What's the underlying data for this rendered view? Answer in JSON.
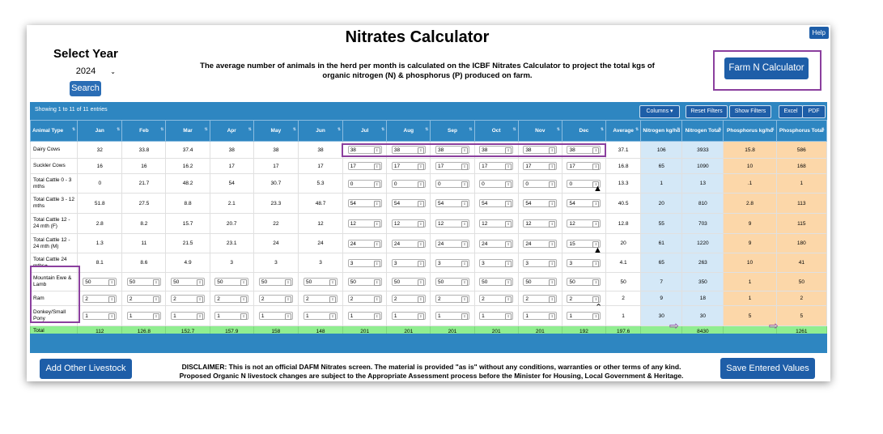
{
  "help_label": "Help",
  "title": "Nitrates Calculator",
  "select_year_label": "Select Year",
  "year_value": "2024",
  "search_label": "Search",
  "intro_text": "The average number of animals in the herd per month is calculated on the ICBF Nitrates Calculator to project the total kgs of organic nitrogen (N) & phosphorus (P) produced on farm.",
  "farm_button_label": "Farm N Calculator",
  "showing_text": "Showing 1 to 11 of 11 entries",
  "toolbar": {
    "columns": "Columns ▾",
    "reset": "Reset Filters",
    "show": "Show Filters",
    "excel": "Excel",
    "pdf": "PDF"
  },
  "headers": [
    "Animal Type",
    "Jan",
    "Feb",
    "Mar",
    "Apr",
    "May",
    "Jun",
    "Jul",
    "Aug",
    "Sep",
    "Oct",
    "Nov",
    "Dec",
    "Average",
    "Nitrogen kg/hd",
    "Nitrogen Total",
    "Phosphorus kg/hd",
    "Phosphorus Total"
  ],
  "rows": [
    {
      "label": "Dairy Cows",
      "jan": "32",
      "feb": "33.8",
      "mar": "37.4",
      "apr": "38",
      "may": "38",
      "jun": "38",
      "jul": "38",
      "aug": "38",
      "sep": "38",
      "oct": "38",
      "nov": "38",
      "dec": "38",
      "avg": "37.1",
      "nkg": "106",
      "ntot": "3933",
      "pkg": "15.8",
      "ptot": "586"
    },
    {
      "label": "Suckler Cows",
      "jan": "16",
      "feb": "16",
      "mar": "16.2",
      "apr": "17",
      "may": "17",
      "jun": "17",
      "jul": "17",
      "aug": "17",
      "sep": "17",
      "oct": "17",
      "nov": "17",
      "dec": "17",
      "avg": "16.8",
      "nkg": "65",
      "ntot": "1090",
      "pkg": "10",
      "ptot": "168"
    },
    {
      "label": "Total Cattle 0 - 3 mths",
      "jan": "0",
      "feb": "21.7",
      "mar": "48.2",
      "apr": "54",
      "may": "30.7",
      "jun": "5.3",
      "jul": "0",
      "aug": "0",
      "sep": "0",
      "oct": "0",
      "nov": "0",
      "dec": "0",
      "avg": "13.3",
      "nkg": "1",
      "ntot": "13",
      "pkg": ".1",
      "ptot": "1"
    },
    {
      "label": "Total Cattle 3 - 12 mths",
      "jan": "51.8",
      "feb": "27.5",
      "mar": "8.8",
      "apr": "2.1",
      "may": "23.3",
      "jun": "48.7",
      "jul": "54",
      "aug": "54",
      "sep": "54",
      "oct": "54",
      "nov": "54",
      "dec": "54",
      "avg": "40.5",
      "nkg": "20",
      "ntot": "810",
      "pkg": "2.8",
      "ptot": "113"
    },
    {
      "label": "Total Cattle 12 - 24 mth (F)",
      "jan": "2.8",
      "feb": "8.2",
      "mar": "15.7",
      "apr": "20.7",
      "may": "22",
      "jun": "12",
      "jul": "12",
      "aug": "12",
      "sep": "12",
      "oct": "12",
      "nov": "12",
      "dec": "12",
      "avg": "12.8",
      "nkg": "55",
      "ntot": "703",
      "pkg": "9",
      "ptot": "115"
    },
    {
      "label": "Total Cattle 12 - 24 mth (M)",
      "jan": "1.3",
      "feb": "11",
      "mar": "21.5",
      "apr": "23.1",
      "may": "24",
      "jun": "24",
      "jul": "24",
      "aug": "24",
      "sep": "24",
      "oct": "24",
      "nov": "24",
      "dec": "15",
      "avg": "20",
      "nkg": "61",
      "ntot": "1220",
      "pkg": "9",
      "ptot": "180"
    },
    {
      "label": "Total Cattle 24 mths+",
      "jan": "8.1",
      "feb": "8.6",
      "mar": "4.9",
      "apr": "3",
      "may": "3",
      "jun": "3",
      "jul": "3",
      "aug": "3",
      "sep": "3",
      "oct": "3",
      "nov": "3",
      "dec": "3",
      "avg": "4.1",
      "nkg": "65",
      "ntot": "263",
      "pkg": "10",
      "ptot": "41"
    },
    {
      "label": "Mountain Ewe & Lamb",
      "jan": "50",
      "feb": "50",
      "mar": "50",
      "apr": "50",
      "may": "50",
      "jun": "50",
      "jul": "50",
      "aug": "50",
      "sep": "50",
      "oct": "50",
      "nov": "50",
      "dec": "50",
      "avg": "50",
      "nkg": "7",
      "ntot": "350",
      "pkg": "1",
      "ptot": "50"
    },
    {
      "label": "Ram",
      "jan": "2",
      "feb": "2",
      "mar": "2",
      "apr": "2",
      "may": "2",
      "jun": "2",
      "jul": "2",
      "aug": "2",
      "sep": "2",
      "oct": "2",
      "nov": "2",
      "dec": "2",
      "avg": "2",
      "nkg": "9",
      "ntot": "18",
      "pkg": "1",
      "ptot": "2"
    },
    {
      "label": "Donkey/Small Pony",
      "jan": "1",
      "feb": "1",
      "mar": "1",
      "apr": "1",
      "may": "1",
      "jun": "1",
      "jul": "1",
      "aug": "1",
      "sep": "1",
      "oct": "1",
      "nov": "1",
      "dec": "1",
      "avg": "1",
      "nkg": "30",
      "ntot": "30",
      "pkg": "5",
      "ptot": "5"
    }
  ],
  "total_row": {
    "label": "Total",
    "jan": "112",
    "feb": "126.8",
    "mar": "152.7",
    "apr": "157.9",
    "may": "158",
    "jun": "148",
    "jul": "201",
    "aug": "201",
    "sep": "201",
    "oct": "201",
    "nov": "201",
    "dec": "192",
    "avg": "197.6",
    "nkg": "",
    "ntot": "8430",
    "pkg": "",
    "ptot": "1261"
  },
  "add_button_label": "Add Other Livestock",
  "save_button_label": "Save Entered Values",
  "disclaimer_line1": "DISCLAIMER: This is not an official DAFM Nitrates screen. The material is provided \"as is\" without any conditions, warranties or other terms of any kind.",
  "disclaimer_line2": "Proposed Organic N livestock changes are subject to the Appropriate Assessment process before the Minister for Housing, Local Government & Heritage."
}
